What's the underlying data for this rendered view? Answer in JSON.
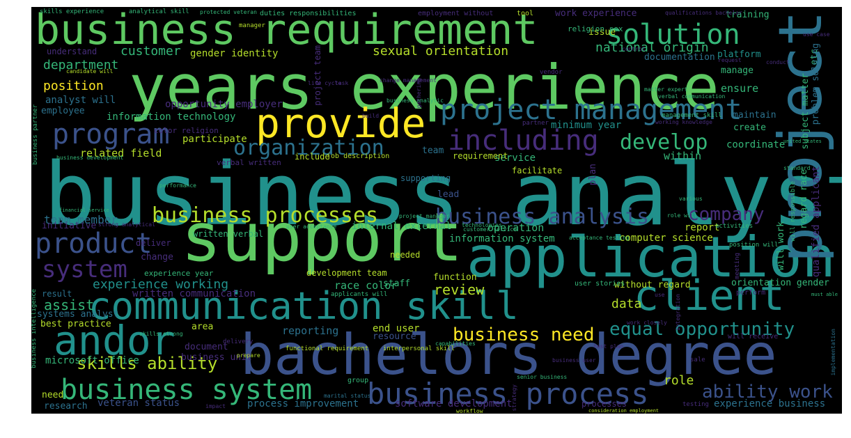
{
  "words": [
    {
      "id": "business-analyst",
      "text": "business analyst",
      "color": "#21918c"
    },
    {
      "id": "years-experience",
      "text": "years experience",
      "color": "#5ec962"
    },
    {
      "id": "support",
      "text": "support",
      "color": "#5ec962"
    },
    {
      "id": "bachelors-degree",
      "text": "bachelors degree",
      "color": "#3b528b"
    },
    {
      "id": "business-requirement",
      "text": "business requirement",
      "color": "#5ec962"
    },
    {
      "id": "application",
      "text": "application",
      "color": "#21918c"
    },
    {
      "id": "communication-skill",
      "text": "communication skill",
      "color": "#21918c"
    },
    {
      "id": "project",
      "text": "project",
      "color": "#2c728e"
    },
    {
      "id": "client",
      "text": "client",
      "color": "#21918c"
    },
    {
      "id": "provide",
      "text": "provide",
      "color": "#fde725"
    },
    {
      "id": "andor",
      "text": "andor",
      "color": "#21918c"
    },
    {
      "id": "solution",
      "text": "solution",
      "color": "#35b779"
    },
    {
      "id": "project-management",
      "text": "project management",
      "color": "#2c728e"
    },
    {
      "id": "business-process",
      "text": "business process",
      "color": "#3b528b"
    },
    {
      "id": "business-system",
      "text": "business system",
      "color": "#35b779"
    },
    {
      "id": "including",
      "text": "including",
      "color": "#472d7b"
    },
    {
      "id": "program",
      "text": "program",
      "color": "#3b528b"
    },
    {
      "id": "product",
      "text": "product",
      "color": "#3b528b"
    },
    {
      "id": "system",
      "text": "system",
      "color": "#472d7b"
    },
    {
      "id": "organization",
      "text": "organization",
      "color": "#2c728e"
    },
    {
      "id": "develop",
      "text": "develop",
      "color": "#35b779"
    },
    {
      "id": "business-processes",
      "text": "business processes",
      "color": "#b5de2b"
    },
    {
      "id": "business-analysis",
      "text": "business analysis",
      "color": "#3b528b"
    },
    {
      "id": "equal-opportunity",
      "text": "equal opportunity",
      "color": "#21918c"
    },
    {
      "id": "business-need",
      "text": "business need",
      "color": "#fde725"
    },
    {
      "id": "company",
      "text": "company",
      "color": "#472d7b"
    },
    {
      "id": "ability-work",
      "text": "ability work",
      "color": "#3b528b"
    },
    {
      "id": "skills-ability",
      "text": "skills ability",
      "color": "#b5de2b"
    },
    {
      "id": "customer",
      "text": "customer",
      "color": "#35b779"
    },
    {
      "id": "national-origin",
      "text": "national origin",
      "color": "#35b779"
    },
    {
      "id": "sexual-orientation",
      "text": "sexual orientation",
      "color": "#b5de2b"
    },
    {
      "id": "experience-working",
      "text": "experience working",
      "color": "#21918c"
    },
    {
      "id": "assist",
      "text": "assist",
      "color": "#35b779"
    },
    {
      "id": "position",
      "text": "position",
      "color": "#fde725"
    },
    {
      "id": "department",
      "text": "department",
      "color": "#35b779"
    },
    {
      "id": "review",
      "text": "review",
      "color": "#b5de2b"
    },
    {
      "id": "team-member",
      "text": "team member",
      "color": "#2c728e"
    },
    {
      "id": "gender-identity",
      "text": "gender identity",
      "color": "#b5de2b"
    },
    {
      "id": "information-technology",
      "text": "information technology",
      "color": "#35b779"
    },
    {
      "id": "opportunity-employer",
      "text": "opportunity employer",
      "color": "#472d7b"
    },
    {
      "id": "related-field",
      "text": "related field",
      "color": "#b5de2b"
    },
    {
      "id": "data",
      "text": "data",
      "color": "#b5de2b"
    },
    {
      "id": "role",
      "text": "role",
      "color": "#b5de2b"
    },
    {
      "id": "reporting",
      "text": "reporting",
      "color": "#2c728e"
    },
    {
      "id": "report",
      "text": "report",
      "color": "#b5de2b"
    },
    {
      "id": "operation",
      "text": "operation",
      "color": "#35b779"
    },
    {
      "id": "within",
      "text": "within",
      "color": "#35b779"
    },
    {
      "id": "service",
      "text": "service",
      "color": "#35b779"
    },
    {
      "id": "ensure",
      "text": "ensure",
      "color": "#35b779"
    },
    {
      "id": "coordinate",
      "text": "coordinate",
      "color": "#35b779"
    },
    {
      "id": "analyst-will",
      "text": "analyst will",
      "color": "#2c728e"
    },
    {
      "id": "information-system",
      "text": "information system",
      "color": "#35b779"
    },
    {
      "id": "internal-external",
      "text": "internal external",
      "color": "#35b779"
    },
    {
      "id": "race-color",
      "text": "race color",
      "color": "#35b779"
    },
    {
      "id": "veteran-status",
      "text": "veteran status",
      "color": "#3b528b"
    },
    {
      "id": "process-improvement",
      "text": "process improvement",
      "color": "#2c728e"
    },
    {
      "id": "software-development",
      "text": "software development",
      "color": "#472d7b"
    },
    {
      "id": "experience-business",
      "text": "experience business",
      "color": "#2c728e"
    },
    {
      "id": "end-user",
      "text": "end user",
      "color": "#b5de2b"
    },
    {
      "id": "microsoft-office",
      "text": "microsoft office",
      "color": "#35b779"
    },
    {
      "id": "business-unit",
      "text": "business unit",
      "color": "#472d7b"
    },
    {
      "id": "research",
      "text": "research",
      "color": "#2c728e"
    },
    {
      "id": "need",
      "text": "need",
      "color": "#b5de2b"
    },
    {
      "id": "best-practice",
      "text": "best practice",
      "color": "#b5de2b"
    },
    {
      "id": "systems-analyst",
      "text": "systems analyst",
      "color": "#2c728e"
    },
    {
      "id": "written-communication",
      "text": "written communication",
      "color": "#472d7b"
    },
    {
      "id": "computer-science",
      "text": "computer science",
      "color": "#b5de2b"
    },
    {
      "id": "orientation-gender",
      "text": "orientation gender",
      "color": "#35b779"
    },
    {
      "id": "without-regard",
      "text": "without regard",
      "color": "#b5de2b"
    },
    {
      "id": "minimum-year",
      "text": "minimum year",
      "color": "#21918c"
    },
    {
      "id": "participate",
      "text": "participate",
      "color": "#b5de2b"
    },
    {
      "id": "employee",
      "text": "employee",
      "color": "#2c728e"
    },
    {
      "id": "manage",
      "text": "manage",
      "color": "#35b779"
    },
    {
      "id": "training",
      "text": "training",
      "color": "#35b779"
    },
    {
      "id": "work-experience",
      "text": "work experience",
      "color": "#472d7b"
    },
    {
      "id": "issue",
      "text": "issue",
      "color": "#b5de2b"
    },
    {
      "id": "platform",
      "text": "platform",
      "color": "#21918c"
    },
    {
      "id": "documentation",
      "text": "documentation",
      "color": "#2c728e"
    },
    {
      "id": "maintain",
      "text": "maintain",
      "color": "#2c728e"
    },
    {
      "id": "create",
      "text": "create",
      "color": "#35b779"
    },
    {
      "id": "development-team",
      "text": "development team",
      "color": "#b5de2b"
    },
    {
      "id": "supporting",
      "text": "supporting",
      "color": "#2c728e"
    },
    {
      "id": "lead",
      "text": "lead",
      "color": "#3b528b"
    },
    {
      "id": "team",
      "text": "team",
      "color": "#2c728e"
    },
    {
      "id": "staff",
      "text": "staff",
      "color": "#35b779"
    },
    {
      "id": "function",
      "text": "function",
      "color": "#b5de2b"
    },
    {
      "id": "include",
      "text": "include",
      "color": "#b5de2b"
    },
    {
      "id": "requirement",
      "text": "requirement",
      "color": "#b5de2b"
    },
    {
      "id": "facilitate",
      "text": "facilitate",
      "color": "#b5de2b"
    },
    {
      "id": "needed",
      "text": "needed",
      "color": "#b5de2b"
    },
    {
      "id": "change",
      "text": "change",
      "color": "#472d7b"
    },
    {
      "id": "area",
      "text": "area",
      "color": "#b5de2b"
    },
    {
      "id": "document",
      "text": "document",
      "color": "#472d7b"
    },
    {
      "id": "result",
      "text": "result",
      "color": "#2c728e"
    },
    {
      "id": "deliver",
      "text": "deliver",
      "color": "#472d7b"
    },
    {
      "id": "resource",
      "text": "resource",
      "color": "#3b528b"
    },
    {
      "id": "experience-year",
      "text": "experience year",
      "color": "#35b779"
    },
    {
      "id": "etc",
      "text": "etc",
      "color": "#35b779"
    },
    {
      "id": "subject-matter",
      "text": "subject matter",
      "color": "#35b779"
    },
    {
      "id": "problem-solving",
      "text": "problem solving",
      "color": "#2c728e"
    },
    {
      "id": "qualified-applicant",
      "text": "qualified applicant",
      "color": "#472d7b"
    },
    {
      "id": "regard-race",
      "text": "regard race",
      "color": "#35b779"
    },
    {
      "id": "will-work",
      "text": "will work",
      "color": "#35b779"
    },
    {
      "id": "project-team",
      "text": "project team",
      "color": "#472d7b"
    },
    {
      "id": "plan",
      "text": "plan",
      "color": "#472d7b"
    },
    {
      "id": "initiative",
      "text": "initiative",
      "color": "#472d7b"
    },
    {
      "id": "written-verbal",
      "text": "written verbal",
      "color": "#35b779"
    },
    {
      "id": "understand",
      "text": "understand",
      "color": "#472d7b"
    },
    {
      "id": "color-religion",
      "text": "color religion",
      "color": "#472d7b"
    },
    {
      "id": "religion-sex",
      "text": "religion sex",
      "color": "#35b779"
    },
    {
      "id": "manager",
      "text": "manager",
      "color": "#b5de2b"
    },
    {
      "id": "tool",
      "text": "tool",
      "color": "#b5de2b"
    },
    {
      "id": "employment-without",
      "text": "employment without",
      "color": "#472d7b"
    },
    {
      "id": "duties-responsibilities",
      "text": "duties responsibilities",
      "color": "#35b779"
    },
    {
      "id": "skills-experience",
      "text": "skills experience",
      "color": "#35b779"
    },
    {
      "id": "analytical-skill",
      "text": "analytical skill",
      "color": "#35b779"
    },
    {
      "id": "protected-veteran",
      "text": "protected veteran",
      "color": "#35b779"
    },
    {
      "id": "qualifications-bachelor",
      "text": "qualifications bachelor",
      "color": "#472d7b"
    },
    {
      "id": "candidate-will",
      "text": "candidate will",
      "color": "#b5de2b"
    },
    {
      "id": "job-description",
      "text": "job description",
      "color": "#b5de2b"
    },
    {
      "id": "business-partner",
      "text": "business partner",
      "color": "#35b779"
    },
    {
      "id": "vendor",
      "text": "vendor",
      "color": "#472d7b"
    },
    {
      "id": "partner",
      "text": "partner",
      "color": "#472d7b"
    },
    {
      "id": "test-plan",
      "text": "test plan",
      "color": "#472d7b"
    },
    {
      "id": "business-user",
      "text": "business user",
      "color": "#472d7b"
    },
    {
      "id": "group",
      "text": "group",
      "color": "#35b779"
    },
    {
      "id": "meeting",
      "text": "meeting",
      "color": "#472d7b"
    },
    {
      "id": "testing",
      "text": "testing",
      "color": "#472d7b"
    },
    {
      "id": "perform",
      "text": "perform",
      "color": "#472d7b"
    },
    {
      "id": "processes",
      "text": "processes",
      "color": "#472d7b"
    },
    {
      "id": "user-stories",
      "text": "user stories",
      "color": "#35b779"
    },
    {
      "id": "will-receive",
      "text": "will receive",
      "color": "#472d7b"
    },
    {
      "id": "implementation",
      "text": "implementation",
      "color": "#2c728e"
    },
    {
      "id": "business-intelligence",
      "text": "business intelligence",
      "color": "#35b779"
    },
    {
      "id": "activities",
      "text": "activities",
      "color": "#35b779"
    },
    {
      "id": "position-will",
      "text": "position will",
      "color": "#35b779"
    },
    {
      "id": "will-responsible",
      "text": "will responsible",
      "color": "#35b779"
    },
    {
      "id": "working-knowledge",
      "text": "working knowledge",
      "color": "#472d7b"
    },
    {
      "id": "management-skill",
      "text": "management skill",
      "color": "#35b779"
    },
    {
      "id": "senior-business",
      "text": "senior business",
      "color": "#35b779"
    },
    {
      "id": "sale",
      "text": "sale",
      "color": "#472d7b"
    },
    {
      "id": "united-states",
      "text": "united states",
      "color": "#35b779"
    },
    {
      "id": "strong-analytical",
      "text": "strong analytical",
      "color": "#472d7b"
    },
    {
      "id": "customer-service",
      "text": "customer service",
      "color": "#35b779"
    },
    {
      "id": "project-manager",
      "text": "project manager",
      "color": "#35b779"
    },
    {
      "id": "user-acceptance",
      "text": "user acceptance",
      "color": "#35b779"
    },
    {
      "id": "financial-service",
      "text": "financial service",
      "color": "#35b779"
    },
    {
      "id": "applicants-will",
      "text": "applicants will",
      "color": "#35b779"
    },
    {
      "id": "functional-requirement",
      "text": "functional requirement",
      "color": "#b5de2b"
    },
    {
      "id": "interpersonal-skill",
      "text": "interpersonal skill",
      "color": "#b5de2b"
    },
    {
      "id": "marital-status",
      "text": "marital status",
      "color": "#2c728e"
    },
    {
      "id": "consideration-employment",
      "text": "consideration employment",
      "color": "#b5de2b"
    },
    {
      "id": "workflow",
      "text": "workflow",
      "color": "#b5de2b"
    },
    {
      "id": "delivery",
      "text": "delivery",
      "color": "#472d7b"
    },
    {
      "id": "skills-strong",
      "text": "skills strong",
      "color": "#35b779"
    },
    {
      "id": "work-closely",
      "text": "work closely",
      "color": "#472d7b"
    },
    {
      "id": "must-able",
      "text": "must able",
      "color": "#35b779"
    },
    {
      "id": "business-analytic",
      "text": "business analytic",
      "color": "#35b779"
    },
    {
      "id": "business-development",
      "text": "business development",
      "color": "#35b779"
    },
    {
      "id": "verbal-written",
      "text": "verbal written",
      "color": "#472d7b"
    },
    {
      "id": "technologies",
      "text": "technologies",
      "color": "#35b779"
    },
    {
      "id": "acceptance-testing",
      "text": "acceptance testing",
      "color": "#35b779"
    },
    {
      "id": "life-cycle",
      "text": "life cycle",
      "color": "#472d7b"
    },
    {
      "id": "control",
      "text": "control",
      "color": "#472d7b"
    },
    {
      "id": "conduct",
      "text": "conduct",
      "color": "#472d7b"
    },
    {
      "id": "use-case",
      "text": "use case",
      "color": "#472d7b"
    },
    {
      "id": "request",
      "text": "request",
      "color": "#472d7b"
    },
    {
      "id": "performance",
      "text": "performance",
      "color": "#35b779"
    },
    {
      "id": "standard",
      "text": "standard",
      "color": "#35b779"
    },
    {
      "id": "various",
      "text": "various",
      "color": "#35b779"
    },
    {
      "id": "role-will",
      "text": "role will",
      "color": "#35b779"
    },
    {
      "id": "task",
      "text": "task",
      "color": "#472d7b"
    },
    {
      "id": "build",
      "text": "build",
      "color": "#472d7b"
    },
    {
      "id": "gathering",
      "text": "gathering",
      "color": "#472d7b"
    },
    {
      "id": "change-management",
      "text": "change management",
      "color": "#472d7b"
    },
    {
      "id": "capabilities",
      "text": "capabilities",
      "color": "#35b779"
    },
    {
      "id": "prepare",
      "text": "prepare",
      "color": "#b5de2b"
    },
    {
      "id": "impact",
      "text": "impact",
      "color": "#472d7b"
    },
    {
      "id": "strategy",
      "text": "strategy",
      "color": "#472d7b"
    },
    {
      "id": "integration",
      "text": "integration",
      "color": "#472d7b"
    },
    {
      "id": "use",
      "text": "use",
      "color": "#472d7b"
    },
    {
      "id": "matter-expert",
      "text": "matter expert",
      "color": "#35b779"
    },
    {
      "id": "verbal-communication",
      "text": "verbal communication",
      "color": "#35b779"
    }
  ]
}
